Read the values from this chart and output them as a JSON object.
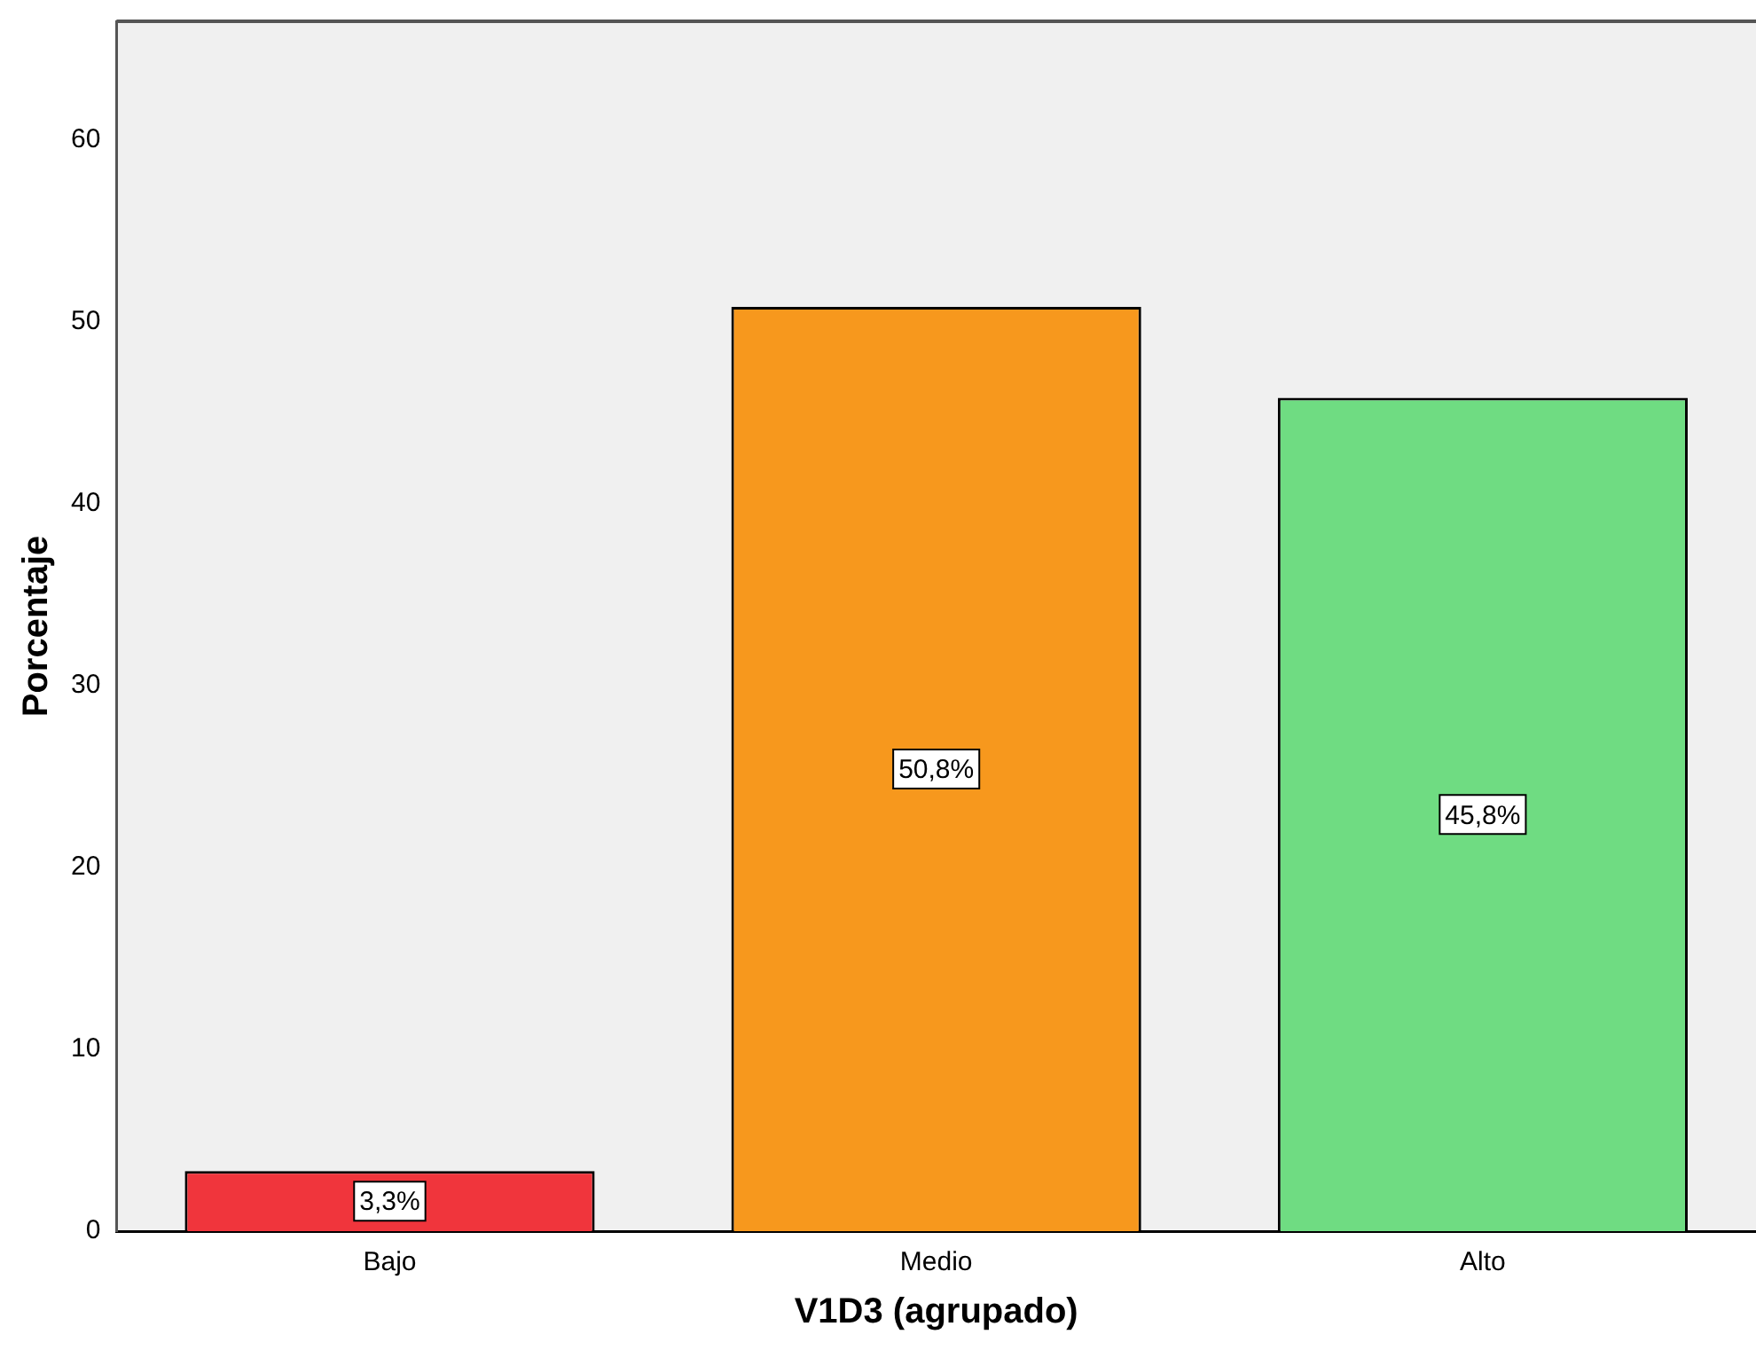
{
  "chart_data": {
    "type": "bar",
    "xlabel": "V1D3 (agrupado)",
    "ylabel": "Porcentaje",
    "categories": [
      "Bajo",
      "Medio",
      "Alto"
    ],
    "values": [
      3.3,
      50.8,
      45.8
    ],
    "colors": [
      "#f0353c",
      "#f7981d",
      "#6fdc82"
    ],
    "value_labels": [
      "3,3%",
      "50,8%",
      "45,8%"
    ],
    "ylim": [
      0,
      66.5
    ],
    "yticks": [
      0,
      10,
      20,
      30,
      40,
      50,
      60
    ],
    "grid": false,
    "legend": false
  }
}
